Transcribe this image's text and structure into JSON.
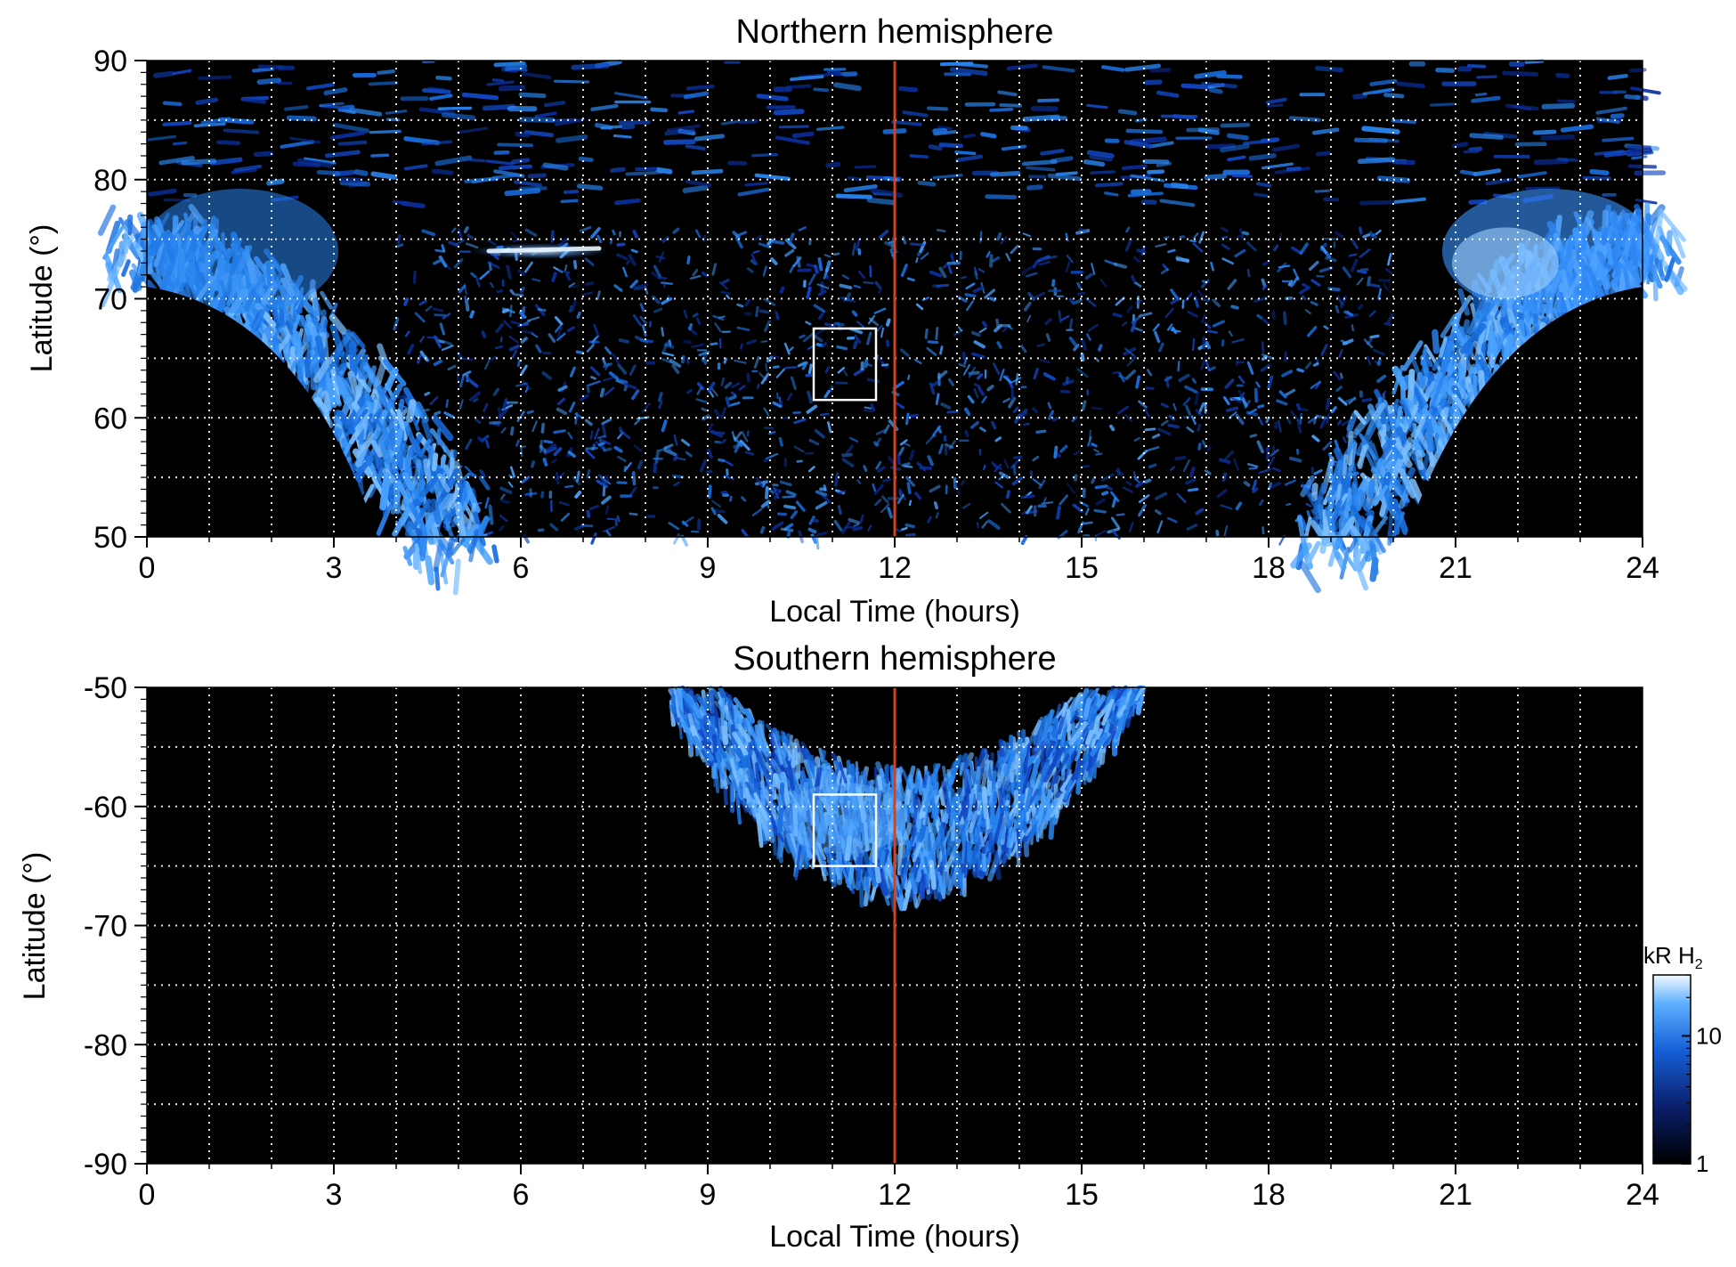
{
  "colors": {
    "background": "#000000",
    "grid": "#ffffff",
    "noon_line": "#d2421e",
    "box": "#ffffff",
    "emission_dim": "#0a2a8a",
    "emission_mid": "#1a6fe0",
    "emission_bright": "#bfe4ff"
  },
  "chart_data": [
    {
      "type": "heatmap",
      "title": "Northern hemisphere",
      "xlabel": "Local Time (hours)",
      "ylabel": "Latitude (°)",
      "xlim": [
        0,
        24
      ],
      "ylim": [
        50,
        90
      ],
      "xticks": [
        "0",
        "3",
        "6",
        "9",
        "12",
        "15",
        "18",
        "21",
        "24"
      ],
      "yticks": [
        "50",
        "60",
        "70",
        "80",
        "90"
      ],
      "grid": true,
      "x_grid_step_hours": 1,
      "y_grid_step_deg": 5,
      "noon_line_x": 12,
      "box": {
        "x": [
          10.7,
          11.7
        ],
        "y": [
          61.5,
          67.5
        ]
      },
      "bright_arc": {
        "x": [
          5.2,
          7.4
        ],
        "y": 74
      }
    },
    {
      "type": "heatmap",
      "title": "Southern hemisphere",
      "xlabel": "Local Time (hours)",
      "ylabel": "Latitude (°)",
      "xlim": [
        0,
        24
      ],
      "ylim": [
        -90,
        -50
      ],
      "xticks": [
        "0",
        "3",
        "6",
        "9",
        "12",
        "15",
        "18",
        "21",
        "24"
      ],
      "yticks": [
        "-90",
        "-80",
        "-70",
        "-60",
        "-50"
      ],
      "grid": true,
      "x_grid_step_hours": 1,
      "y_grid_step_deg": 5,
      "noon_line_x": 12,
      "box": {
        "x": [
          10.7,
          11.7
        ],
        "y": [
          -65,
          -59
        ]
      }
    }
  ],
  "colorbar": {
    "label_unit": "kR H",
    "label_subscript": "2",
    "scale": "log",
    "range": [
      1,
      30
    ],
    "ticks": [
      "1",
      "10"
    ]
  }
}
